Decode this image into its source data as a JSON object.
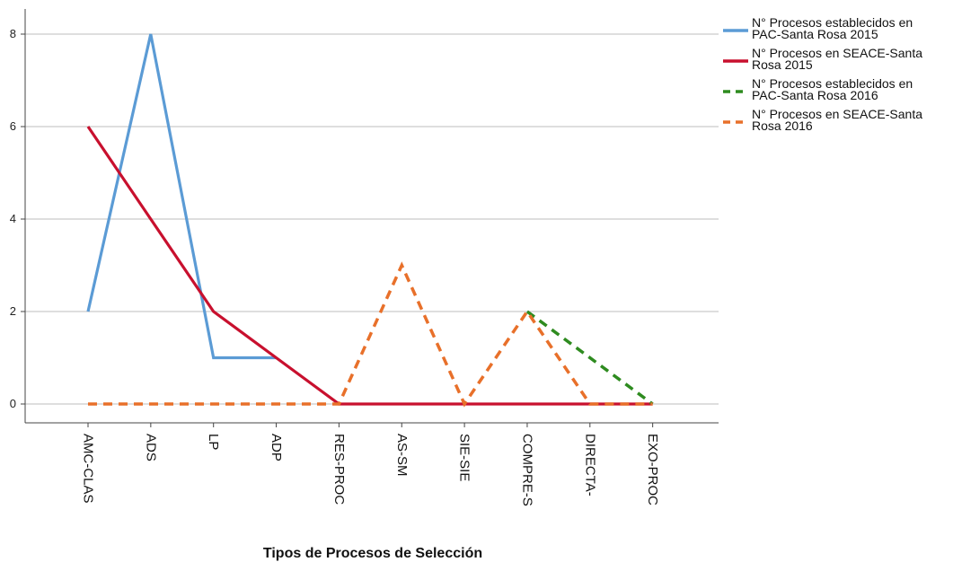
{
  "chart_data": {
    "type": "line",
    "xlabel": "Tipos de Procesos de Selección",
    "ylabel": "",
    "ylim": [
      0,
      8.3
    ],
    "yticks": [
      0,
      2,
      4,
      6,
      8
    ],
    "grid": "horizontal",
    "legend_position": "top-right",
    "categories": [
      "AMC-CLAS",
      "ADS",
      "LP",
      "ADP",
      "RES-PROC",
      "AS-SM",
      "SIE-SIE",
      "COMPRE-S",
      "DIRECTA-",
      "EXO-PROC"
    ],
    "series": [
      {
        "name": "N° Procesos establecidos en PAC-Santa Rosa 2015",
        "legend_lines": [
          "N° Procesos establecidos en",
          "PAC-Santa Rosa 2015"
        ],
        "color": "#5b9bd5",
        "dash": "solid",
        "values": [
          2,
          8,
          1,
          1,
          null,
          null,
          null,
          null,
          null,
          null
        ]
      },
      {
        "name": "N° Procesos en SEACE-Santa Rosa 2015",
        "legend_lines": [
          "N° Procesos en SEACE-Santa",
          "Rosa 2015"
        ],
        "color": "#c8102e",
        "dash": "solid",
        "values": [
          6,
          4,
          2,
          1,
          0,
          0,
          0,
          0,
          0,
          0
        ]
      },
      {
        "name": "N° Procesos establecidos en PAC-Santa Rosa 2016",
        "legend_lines": [
          "N° Procesos establecidos en",
          "PAC-Santa Rosa 2016"
        ],
        "color": "#2e8b1f",
        "dash": "dashed",
        "values": [
          null,
          null,
          null,
          null,
          null,
          null,
          null,
          2,
          1,
          0
        ]
      },
      {
        "name": "N° Procesos en SEACE-Santa Rosa 2016",
        "legend_lines": [
          "N° Procesos en SEACE-Santa",
          "Rosa 2016"
        ],
        "color": "#e8702a",
        "dash": "dashed",
        "values": [
          0,
          0,
          0,
          0,
          0,
          3,
          0,
          2,
          0,
          0
        ]
      }
    ]
  }
}
